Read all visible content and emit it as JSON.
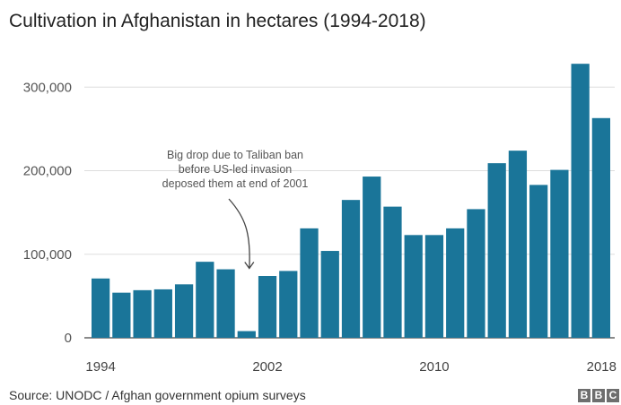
{
  "chart_data": {
    "type": "bar",
    "title": "Cultivation in Afghanistan in hectares (1994-2018)",
    "x": [
      1994,
      1995,
      1996,
      1997,
      1998,
      1999,
      2000,
      2001,
      2002,
      2003,
      2004,
      2005,
      2006,
      2007,
      2008,
      2009,
      2010,
      2011,
      2012,
      2013,
      2014,
      2015,
      2016,
      2017,
      2018
    ],
    "values": [
      71000,
      54000,
      57000,
      58000,
      64000,
      91000,
      82000,
      8000,
      74000,
      80000,
      131000,
      104000,
      165000,
      193000,
      157000,
      123000,
      123000,
      131000,
      154000,
      209000,
      224000,
      183000,
      201000,
      328000,
      263000
    ],
    "ylim": [
      0,
      340000
    ],
    "yticks": [
      0,
      100000,
      200000,
      300000
    ],
    "ytick_labels": [
      "0",
      "100,000",
      "200,000",
      "300,000"
    ],
    "xtick_labels": [
      {
        "year": 1994,
        "label": "1994"
      },
      {
        "year": 2002,
        "label": "2002"
      },
      {
        "year": 2010,
        "label": "2010"
      },
      {
        "year": 2018,
        "label": "2018"
      }
    ],
    "bar_color": "#1a7599",
    "grid": true,
    "annotation": {
      "lines": [
        "Big drop due to Taliban ban",
        "before US-led invasion",
        "deposed them at end of 2001"
      ],
      "points_to_year": 2001
    }
  },
  "source": "Source: UNODC / Afghan government opium surveys",
  "logo": [
    "B",
    "B",
    "C"
  ]
}
